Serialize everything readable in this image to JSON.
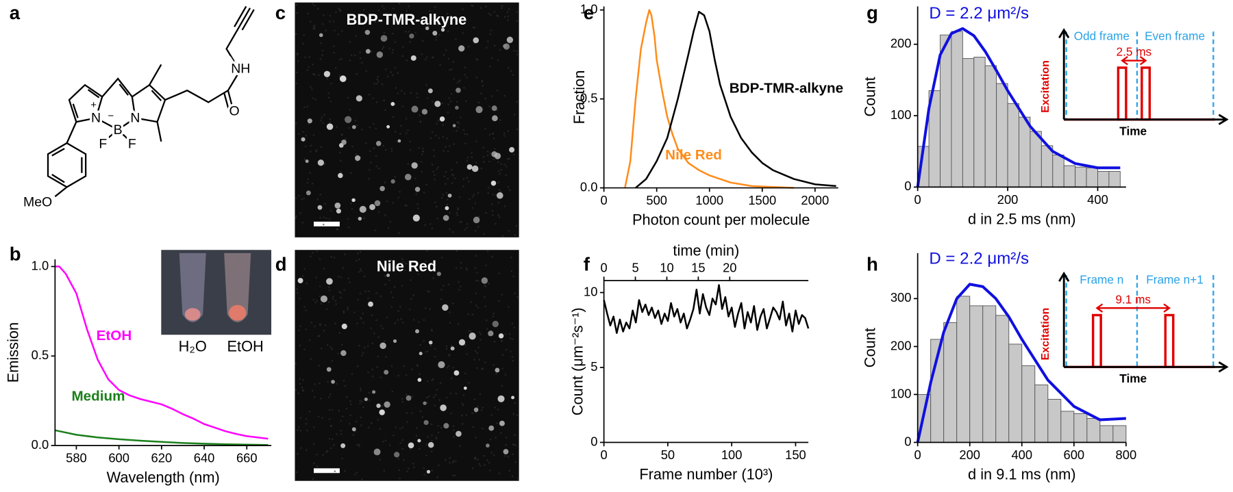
{
  "panel_labels": [
    "a",
    "b",
    "c",
    "d",
    "e",
    "f",
    "g",
    "h"
  ],
  "structure": {
    "labels": [
      "N",
      "N",
      "+",
      "−",
      "B",
      "F",
      "F",
      "NH",
      "O",
      "MeO"
    ]
  },
  "images": [
    {
      "title": "BDP-TMR-alkyne"
    },
    {
      "title": "Nile Red"
    }
  ],
  "chart_data": [
    {
      "type": "line",
      "xlabel": "Wavelength (nm)",
      "ylabel": "Emission",
      "xlim": [
        570,
        671.5
      ],
      "xticks": [
        580,
        600,
        620,
        640,
        660
      ],
      "ylim": [
        0,
        1.04
      ],
      "yticks": [
        {
          "value": 0,
          "label": "0.0"
        },
        {
          "value": 0.5,
          "label": "0.5"
        },
        {
          "value": 1,
          "label": "1.0"
        }
      ],
      "inset_labels": [
        "H₂O",
        "EtOH"
      ],
      "series": [
        {
          "name": "EtOH",
          "color": "#ff00ff",
          "x": [
            570,
            572,
            575,
            580,
            585,
            590,
            595,
            600,
            605,
            610,
            615,
            620,
            625,
            630,
            635,
            640,
            645,
            650,
            655,
            660,
            665,
            670
          ],
          "values": [
            1.0,
            1.0,
            0.96,
            0.85,
            0.65,
            0.48,
            0.37,
            0.31,
            0.28,
            0.26,
            0.245,
            0.23,
            0.205,
            0.175,
            0.15,
            0.12,
            0.1,
            0.08,
            0.065,
            0.052,
            0.045,
            0.038
          ]
        },
        {
          "name": "Medium",
          "color": "#1a7f1a",
          "x": [
            570,
            580,
            590,
            600,
            610,
            620,
            630,
            640,
            650,
            660,
            670
          ],
          "values": [
            0.085,
            0.06,
            0.045,
            0.035,
            0.027,
            0.02,
            0.014,
            0.01,
            0.007,
            0.005,
            0.003
          ]
        }
      ]
    },
    {
      "type": "line",
      "xlabel": "Photon count per molecule",
      "ylabel": "Fraction",
      "xlim": [
        0,
        2220
      ],
      "xticks": [
        0,
        500,
        1000,
        1500,
        2000
      ],
      "ylim": [
        0,
        1.02
      ],
      "yticks": [
        {
          "value": 0,
          "label": "0.0"
        },
        {
          "value": 0.5,
          "label": "0.5"
        },
        {
          "value": 1,
          "label": "1.0"
        }
      ],
      "series": [
        {
          "name": "Nile Red",
          "color": "#ff8c1a",
          "x": [
            200,
            250,
            300,
            350,
            400,
            430,
            450,
            480,
            500,
            550,
            600,
            650,
            700,
            800,
            900,
            1000,
            1100,
            1200,
            1400,
            1600,
            1800
          ],
          "values": [
            0.0,
            0.15,
            0.5,
            0.78,
            0.93,
            1.0,
            0.97,
            0.85,
            0.72,
            0.55,
            0.4,
            0.3,
            0.22,
            0.14,
            0.1,
            0.07,
            0.05,
            0.03,
            0.01,
            0.005,
            0.0
          ]
        },
        {
          "name": "BDP-TMR-alkyne",
          "color": "#000000",
          "x": [
            300,
            400,
            500,
            600,
            700,
            800,
            850,
            900,
            950,
            1000,
            1050,
            1100,
            1200,
            1300,
            1400,
            1500,
            1600,
            1800,
            2000,
            2200
          ],
          "values": [
            0.0,
            0.05,
            0.15,
            0.28,
            0.5,
            0.75,
            0.88,
            0.99,
            0.97,
            0.88,
            0.72,
            0.58,
            0.4,
            0.28,
            0.2,
            0.14,
            0.1,
            0.05,
            0.02,
            0.01
          ]
        }
      ]
    },
    {
      "type": "line",
      "xlabel": "Frame number (10³)",
      "ylabel": "Count (μm⁻²s⁻¹)",
      "xlim": [
        0,
        160
      ],
      "xticks": [
        0,
        50,
        100,
        150
      ],
      "x2label": "time (min)",
      "x2lim": [
        0,
        32.5
      ],
      "x2ticks": [
        0,
        5,
        10,
        15,
        20
      ],
      "ylim": [
        0,
        10.8
      ],
      "yticks": [
        0,
        5,
        10
      ],
      "series": [
        {
          "color": "#000000",
          "x": [
            0,
            2.5,
            5,
            7.5,
            10,
            12.5,
            15,
            17.5,
            20,
            22.5,
            25,
            27.5,
            30,
            32.5,
            35,
            37.5,
            40,
            42.5,
            45,
            47.5,
            50,
            52.5,
            55,
            57.5,
            60,
            62.5,
            65,
            67.5,
            70,
            72.5,
            75,
            77.5,
            80,
            82.5,
            85,
            87.5,
            90,
            92.5,
            95,
            97.5,
            100,
            102.5,
            105,
            107.5,
            110,
            112.5,
            115,
            117.5,
            120,
            122.5,
            125,
            127.5,
            130,
            132.5,
            135,
            137.5,
            140,
            142.5,
            145,
            147.5,
            150,
            152.5,
            155,
            157.5,
            160
          ],
          "values": [
            9.5,
            8.6,
            7.8,
            8.4,
            7.3,
            8.2,
            7.4,
            8.0,
            7.6,
            8.8,
            8.0,
            9.5,
            8.7,
            9.2,
            8.5,
            9.0,
            8.3,
            8.8,
            7.9,
            8.6,
            8.1,
            9.3,
            8.4,
            8.9,
            8.0,
            8.6,
            7.6,
            8.2,
            8.9,
            10.2,
            8.6,
            9.9,
            9.0,
            8.5,
            9.6,
            9.2,
            10.5,
            8.9,
            9.7,
            8.4,
            9.0,
            7.7,
            8.6,
            9.3,
            7.6,
            8.7,
            8.0,
            9.1,
            7.5,
            8.4,
            8.9,
            7.6,
            8.3,
            9.0,
            8.7,
            8.2,
            9.4,
            7.8,
            8.6,
            7.4,
            8.8,
            7.9,
            8.5,
            8.3,
            7.6
          ]
        }
      ]
    },
    {
      "type": "histogram",
      "xlabel": "d in 2.5 ms (nm)",
      "ylabel": "Count",
      "annotation": "D = 2.2 μm²/s",
      "xlim": [
        0,
        463
      ],
      "xticks": [
        0,
        200,
        400
      ],
      "ylim": [
        0,
        253
      ],
      "yticks": [
        0,
        100,
        200
      ],
      "color": "#c8c8c8",
      "bins": [
        0,
        25,
        50,
        75,
        100,
        125,
        150,
        175,
        200,
        225,
        250,
        275,
        300,
        325,
        350,
        375,
        400,
        425,
        450
      ],
      "values": [
        57,
        135,
        213,
        218,
        180,
        182,
        170,
        145,
        117,
        98,
        78,
        58,
        45,
        30,
        28,
        27,
        22,
        22
      ],
      "fit": {
        "color": "#1010e0",
        "x": [
          0,
          25,
          50,
          75,
          100,
          125,
          150,
          175,
          200,
          250,
          300,
          350,
          400,
          450
        ],
        "values": [
          0,
          110,
          185,
          215,
          222,
          212,
          190,
          163,
          135,
          85,
          50,
          33,
          27,
          27
        ]
      },
      "inset": {
        "frames": [
          "Odd frame",
          "Even frame"
        ],
        "interval": "2.5 ms",
        "y_label": "Excitation",
        "x_label": "Time"
      }
    },
    {
      "type": "histogram",
      "xlabel": "d in 9.1 ms (nm)",
      "ylabel": "Count",
      "annotation": "D = 2.2 μm²/s",
      "xlim": [
        0,
        800
      ],
      "xticks": [
        0,
        200,
        400,
        600,
        800
      ],
      "ylim": [
        0,
        395
      ],
      "yticks": [
        0,
        100,
        200,
        300
      ],
      "color": "#c8c8c8",
      "bins": [
        0,
        50,
        100,
        150,
        200,
        250,
        300,
        350,
        400,
        450,
        500,
        550,
        600,
        650,
        700,
        750,
        800
      ],
      "values": [
        100,
        215,
        250,
        305,
        285,
        285,
        265,
        205,
        160,
        120,
        90,
        65,
        60,
        50,
        35,
        35
      ],
      "fit": {
        "color": "#1010e0",
        "x": [
          0,
          50,
          100,
          150,
          200,
          250,
          300,
          350,
          400,
          500,
          600,
          700,
          800
        ],
        "values": [
          0,
          125,
          230,
          300,
          330,
          325,
          300,
          262,
          215,
          130,
          75,
          47,
          50
        ]
      },
      "inset": {
        "frames": [
          "Frame n",
          "Frame n+1"
        ],
        "interval": "9.1 ms",
        "y_label": "Excitation",
        "x_label": "Time"
      }
    }
  ]
}
